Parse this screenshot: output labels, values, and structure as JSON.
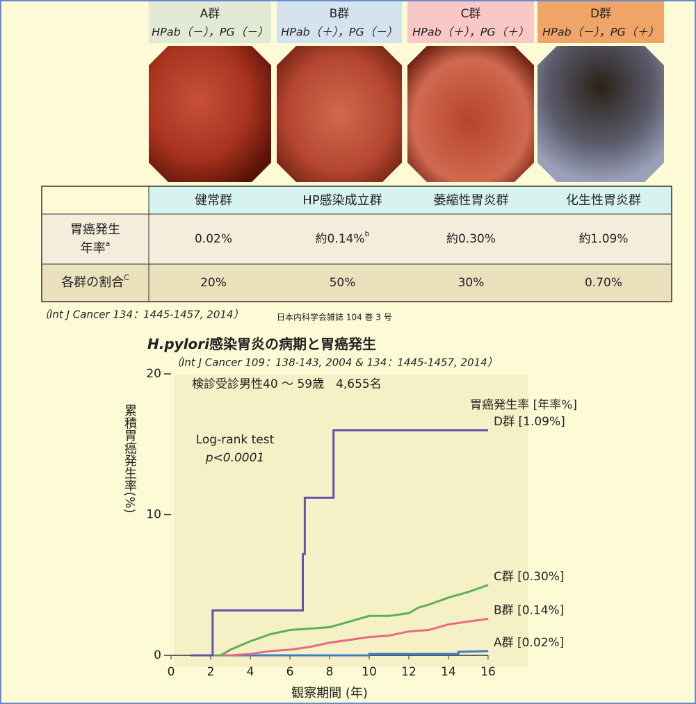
{
  "groups": [
    {
      "label": "A群",
      "formula": "HPab（－），PG（－）",
      "color": "#e2ead6"
    },
    {
      "label": "B群",
      "formula": "HPab（＋），PG（－）",
      "color": "#d4e3ee"
    },
    {
      "label": "C群",
      "formula": "HPab（＋），PG（＋）",
      "color": "#f8c8c6"
    },
    {
      "label": "D群",
      "formula": "HPab（－），PG（＋）",
      "color": "#efa468"
    }
  ],
  "table": {
    "header": [
      "健常群",
      "HP感染成立群",
      "萎縮性胃炎群",
      "化生性胃炎群"
    ],
    "rows": [
      {
        "label": {
          "text": "胃癌発生",
          "text2": "年率",
          "sup": "a"
        },
        "cells": [
          {
            "text": "0.02%"
          },
          {
            "text": "約0.14%",
            "sup": "b"
          },
          {
            "text": "約0.30%"
          },
          {
            "text": "約1.09%"
          }
        ]
      },
      {
        "label": {
          "text": "各群の割合",
          "sup": "C"
        },
        "cells": [
          {
            "text": "20%"
          },
          {
            "text": "50%"
          },
          {
            "text": "30%"
          },
          {
            "text": "0.70%"
          }
        ]
      }
    ]
  },
  "citation": "（Int J Cancer 134：1445-1457, 2014）",
  "journal": "日本内科学会雑誌 104 巻 3 号",
  "chart_data": {
    "type": "line",
    "title": [
      "H.pylori",
      "感染胃炎の病期と胃癌発生"
    ],
    "subtitle": "（Int J Cancer 109：138-143, 2004 & 134：1445-1457, 2014）",
    "annotations": [
      "検診受診男性40 ～ 59歳　4,655名",
      "Log-rank test",
      "p<0.0001"
    ],
    "legend_title": "胃癌発生率 [年率%]",
    "y_label": "累積胃癌発生率(%)",
    "x_label": "観察期間 (年)",
    "xlim": [
      0,
      16
    ],
    "xticks": [
      0,
      2,
      4,
      6,
      8,
      10,
      12,
      14,
      16
    ],
    "ylim": [
      0,
      20
    ],
    "yticks": [
      0,
      10,
      20
    ],
    "series": [
      {
        "name": "A群 [0.02%]",
        "color": "#3a7fc4",
        "x": [
          1,
          10,
          10,
          14.5,
          14.5,
          16
        ],
        "values": [
          0,
          0,
          0.1,
          0.1,
          0.25,
          0.3
        ]
      },
      {
        "name": "B群 [0.14%]",
        "color": "#e86a80",
        "x": [
          1,
          3,
          4,
          5,
          6,
          7,
          8,
          9,
          10,
          11,
          12,
          13,
          14,
          15,
          16
        ],
        "values": [
          0,
          0,
          0.1,
          0.3,
          0.4,
          0.6,
          0.9,
          1.1,
          1.3,
          1.4,
          1.7,
          1.8,
          2.2,
          2.4,
          2.6
        ]
      },
      {
        "name": "C群 [0.30%]",
        "color": "#5fae5a",
        "x": [
          1,
          2.5,
          3,
          4,
          5,
          6,
          7,
          8,
          9,
          10,
          11,
          12,
          12.5,
          13,
          14,
          15,
          16
        ],
        "values": [
          0,
          0,
          0.4,
          1.0,
          1.5,
          1.8,
          1.9,
          2.0,
          2.4,
          2.8,
          2.8,
          3.0,
          3.4,
          3.6,
          4.1,
          4.5,
          5.0
        ]
      },
      {
        "name": "D群 [1.09%]",
        "color": "#6a4fa8",
        "x": [
          1,
          2.1,
          2.1,
          6.65,
          6.65,
          6.75,
          6.75,
          8.2,
          8.2,
          16
        ],
        "values": [
          0,
          0,
          3.2,
          3.2,
          7.2,
          7.2,
          11.2,
          11.2,
          16,
          16
        ]
      }
    ]
  }
}
